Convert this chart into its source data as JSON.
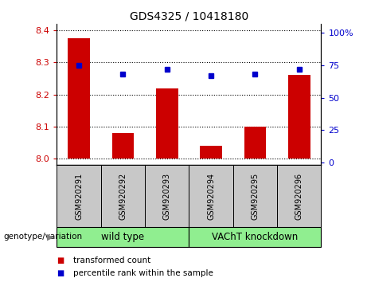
{
  "title": "GDS4325 / 10418180",
  "samples": [
    "GSM920291",
    "GSM920292",
    "GSM920293",
    "GSM920294",
    "GSM920295",
    "GSM920296"
  ],
  "bar_values": [
    8.375,
    8.08,
    8.22,
    8.04,
    8.1,
    8.26
  ],
  "percentile_values": [
    75.0,
    68.0,
    72.0,
    67.0,
    68.0,
    72.0
  ],
  "bar_color": "#cc0000",
  "percentile_color": "#0000cc",
  "ylim_left": [
    7.98,
    8.42
  ],
  "ylim_right": [
    -2.1,
    107
  ],
  "yticks_left": [
    8.0,
    8.1,
    8.2,
    8.3,
    8.4
  ],
  "yticks_right": [
    0,
    25,
    50,
    75,
    100
  ],
  "groups": [
    {
      "label": "wild type",
      "indices": [
        0,
        1,
        2
      ],
      "color": "#90ee90"
    },
    {
      "label": "VAChT knockdown",
      "indices": [
        3,
        4,
        5
      ],
      "color": "#90ee90"
    }
  ],
  "group_label_prefix": "genotype/variation",
  "legend_items": [
    {
      "label": "transformed count",
      "color": "#cc0000"
    },
    {
      "label": "percentile rank within the sample",
      "color": "#0000cc"
    }
  ],
  "bar_baseline": 8.0,
  "background_plot": "#ffffff",
  "tick_label_area_color": "#c8c8c8",
  "group_area_color": "#90ee90"
}
